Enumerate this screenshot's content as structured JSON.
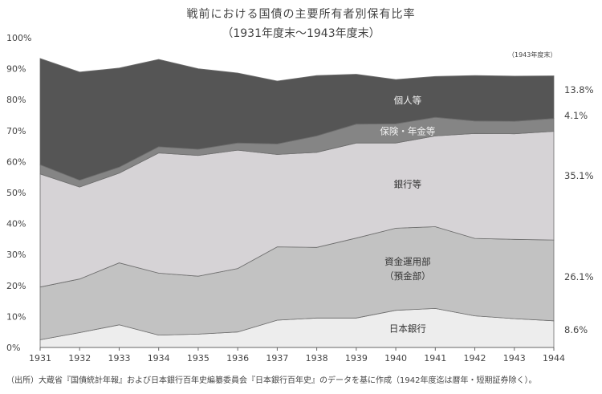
{
  "title": "戦前における国債の主要所有者別保有比率",
  "subtitle": "（1931年度末〜1943年度末）",
  "note": "（1943年度末）",
  "source": "（出所）大蔵省『国債統計年報』および日本銀行百年史編纂委員会『日本銀行百年史』のデータを基に作成（1942年度迄は暦年・短期証券除く）。",
  "colors": {
    "日本銀行": "#ededed",
    "資金運用部": "#c2c2c2",
    "銀行等": "#d6d3d6",
    "保険・年金等": "#858585",
    "個人等": "#555555"
  },
  "area_labels": [
    {
      "series": "日本銀行",
      "lines": [
        "日本銀行"
      ]
    },
    {
      "series": "資金運用部",
      "lines": [
        "資金運用部",
        "（預金部）"
      ]
    },
    {
      "series": "銀行等",
      "lines": [
        "銀行等"
      ]
    },
    {
      "series": "保険・年金等",
      "lines": [
        "保険・年金等"
      ]
    },
    {
      "series": "個人等",
      "lines": [
        "個人等"
      ]
    }
  ],
  "chart_data": {
    "type": "area",
    "stacked": true,
    "x": [
      1931,
      1932,
      1933,
      1934,
      1935,
      1936,
      1937,
      1938,
      1939,
      1940,
      1941,
      1942,
      1943,
      1944
    ],
    "ylim": [
      0,
      100
    ],
    "yticks": [
      "0%",
      "10%",
      "20%",
      "30%",
      "40%",
      "50%",
      "60%",
      "70%",
      "80%",
      "90%",
      "100%"
    ],
    "xlabel": "",
    "ylabel": "",
    "legend": "none",
    "grid": false,
    "series": [
      {
        "name": "日本銀行",
        "values": [
          2.5,
          4.8,
          7.3,
          4.0,
          4.3,
          5.0,
          8.8,
          9.5,
          9.5,
          12.0,
          12.6,
          10.2,
          9.3,
          8.6
        ]
      },
      {
        "name": "資金運用部",
        "values": [
          17.0,
          17.3,
          20.0,
          20.0,
          18.7,
          20.5,
          23.7,
          22.8,
          25.8,
          26.5,
          26.4,
          25.0,
          25.6,
          26.1
        ]
      },
      {
        "name": "銀行等",
        "values": [
          36.5,
          29.7,
          29.0,
          38.8,
          39.0,
          38.2,
          29.8,
          30.7,
          30.7,
          27.5,
          29.3,
          33.9,
          34.1,
          35.1
        ]
      },
      {
        "name": "保険・年金等",
        "values": [
          3.0,
          2.2,
          1.9,
          2.0,
          2.0,
          2.3,
          3.4,
          5.3,
          6.1,
          6.2,
          6.0,
          4.0,
          4.0,
          4.1
        ]
      },
      {
        "name": "個人等",
        "values": [
          34.3,
          34.9,
          32.0,
          28.2,
          26.0,
          22.6,
          20.3,
          19.5,
          16.1,
          14.3,
          13.2,
          14.7,
          14.6,
          13.8
        ]
      }
    ],
    "end_labels": [
      "8.6%",
      "26.1%",
      "35.1%",
      "4.1%",
      "13.8%"
    ]
  }
}
